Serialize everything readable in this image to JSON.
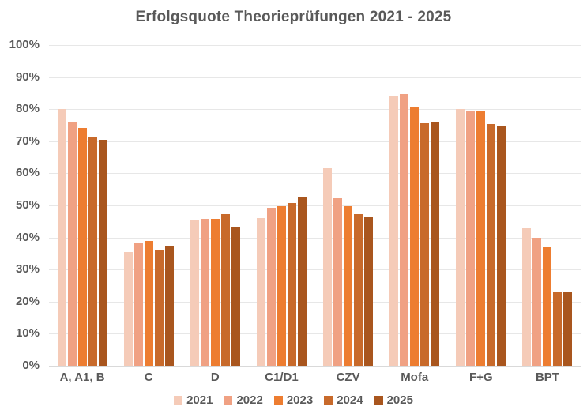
{
  "chart_data": {
    "type": "bar",
    "title": "Erfolgsquote Theorieprüfungen 2021 - 2025",
    "categories": [
      "A, A1, B",
      "C",
      "D",
      "C1/D1",
      "CZV",
      "Mofa",
      "F+G",
      "BPT"
    ],
    "series": [
      {
        "name": "2021",
        "color": "#F5CBB8",
        "values": [
          80.0,
          35.5,
          45.6,
          46.0,
          61.8,
          84.1,
          80.0,
          42.8
        ]
      },
      {
        "name": "2022",
        "color": "#F0A183",
        "values": [
          76.2,
          38.3,
          45.8,
          49.2,
          52.5,
          84.8,
          79.4,
          40.0
        ]
      },
      {
        "name": "2023",
        "color": "#ED7D31",
        "values": [
          74.2,
          39.0,
          45.9,
          49.7,
          49.8,
          80.6,
          79.6,
          37.0
        ]
      },
      {
        "name": "2024",
        "color": "#C86A2B",
        "values": [
          71.1,
          36.3,
          47.2,
          50.7,
          47.3,
          75.7,
          75.3,
          22.8
        ]
      },
      {
        "name": "2025",
        "color": "#A9561E",
        "values": [
          70.4,
          37.5,
          43.3,
          52.6,
          46.4,
          76.0,
          74.8,
          23.2
        ]
      }
    ],
    "ylim": [
      0,
      100
    ],
    "ytick_step": 10,
    "yticks": [
      "0%",
      "10%",
      "20%",
      "30%",
      "40%",
      "50%",
      "60%",
      "70%",
      "80%",
      "90%",
      "100%"
    ],
    "xlabel": "",
    "ylabel": "",
    "grid": true,
    "legend_position": "bottom",
    "colors": {
      "text": "#595959",
      "gridline": "#e7e7e7",
      "axis_line": "#d9d9d9",
      "background": "#ffffff"
    }
  }
}
